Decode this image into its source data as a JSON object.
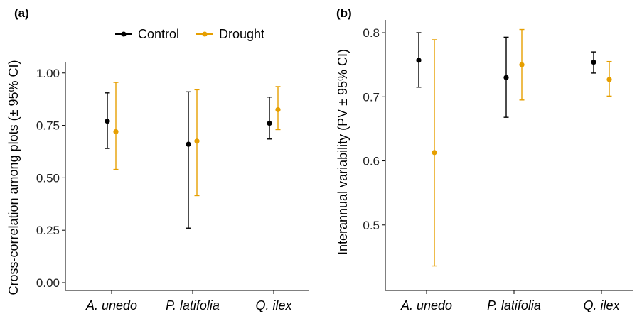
{
  "chart_data": [
    {
      "type": "scatter",
      "panel_label": "(a)",
      "ylabel": "Cross-correlation among plots (± 95% CI)",
      "xlabel": "",
      "categories": [
        "A. unedo",
        "P. latifolia",
        "Q. ilex"
      ],
      "ylim": [
        0.0,
        1.05
      ],
      "yticks": [
        "0.00",
        "0.25",
        "0.50",
        "0.75",
        "1.00"
      ],
      "grid": false,
      "legend": "top",
      "series": [
        {
          "name": "Control",
          "color": "#000000",
          "values": [
            0.77,
            0.66,
            0.76
          ],
          "lower": [
            0.64,
            0.26,
            0.685
          ],
          "upper": [
            0.905,
            0.91,
            0.885
          ]
        },
        {
          "name": "Drought",
          "color": "#E69F00",
          "values": [
            0.72,
            0.675,
            0.825
          ],
          "lower": [
            0.54,
            0.415,
            0.73
          ],
          "upper": [
            0.955,
            0.92,
            0.935
          ]
        }
      ]
    },
    {
      "type": "scatter",
      "panel_label": "(b)",
      "ylabel": "Interannual variability (PV ± 95% CI)",
      "xlabel": "",
      "categories": [
        "A. unedo",
        "P. latifolia",
        "Q. ilex"
      ],
      "ylim": [
        0.41,
        0.82
      ],
      "yticks": [
        "0.5",
        "0.6",
        "0.7",
        "0.8"
      ],
      "grid": false,
      "legend": "none",
      "series": [
        {
          "name": "Control",
          "color": "#000000",
          "values": [
            0.757,
            0.73,
            0.754
          ],
          "lower": [
            0.715,
            0.668,
            0.737
          ],
          "upper": [
            0.8,
            0.793,
            0.77
          ]
        },
        {
          "name": "Drought",
          "color": "#E69F00",
          "values": [
            0.613,
            0.75,
            0.727
          ],
          "lower": [
            0.436,
            0.695,
            0.701
          ],
          "upper": [
            0.789,
            0.805,
            0.755
          ]
        }
      ]
    }
  ]
}
